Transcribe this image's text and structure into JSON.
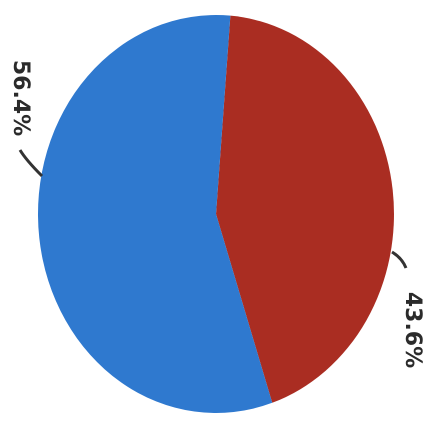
{
  "chart_data": {
    "type": "pie",
    "slices": [
      {
        "value": 43.6,
        "label": "43.6%",
        "color": "#aa2d22"
      },
      {
        "value": 56.4,
        "label": "56.4%",
        "color": "#2f79cf"
      }
    ],
    "start": "top",
    "direction": "clockwise",
    "legend": "none"
  }
}
